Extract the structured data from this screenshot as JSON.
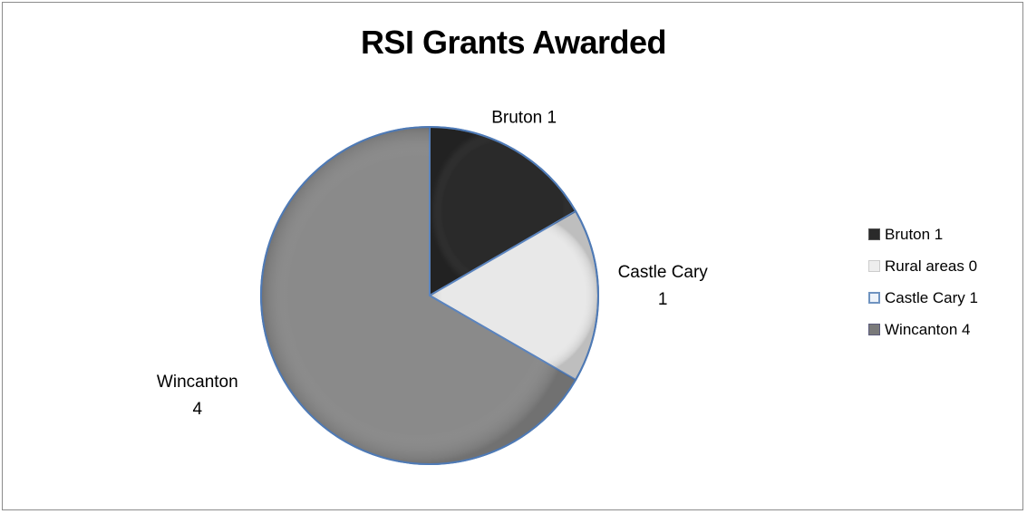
{
  "chart_data": {
    "type": "pie",
    "title": "RSI Grants Awarded",
    "categories": [
      "Bruton 1",
      "Rural areas 0",
      "Castle Cary 1",
      "Wincanton 4"
    ],
    "values": [
      1,
      0,
      1,
      4
    ],
    "colors": [
      "#2a2a2a",
      "#e8e8e8",
      "#e8e8e8",
      "#8a8a8a"
    ],
    "data_labels": [
      {
        "lines": [
          "Bruton 1"
        ]
      },
      {
        "lines": []
      },
      {
        "lines": [
          "Castle Cary",
          "1"
        ]
      },
      {
        "lines": [
          "Wincanton",
          "4"
        ]
      }
    ],
    "legend": {
      "placement": "right",
      "entries": [
        "Bruton 1",
        "Rural areas 0",
        "Castle Cary 1",
        "Wincanton 4"
      ]
    }
  }
}
